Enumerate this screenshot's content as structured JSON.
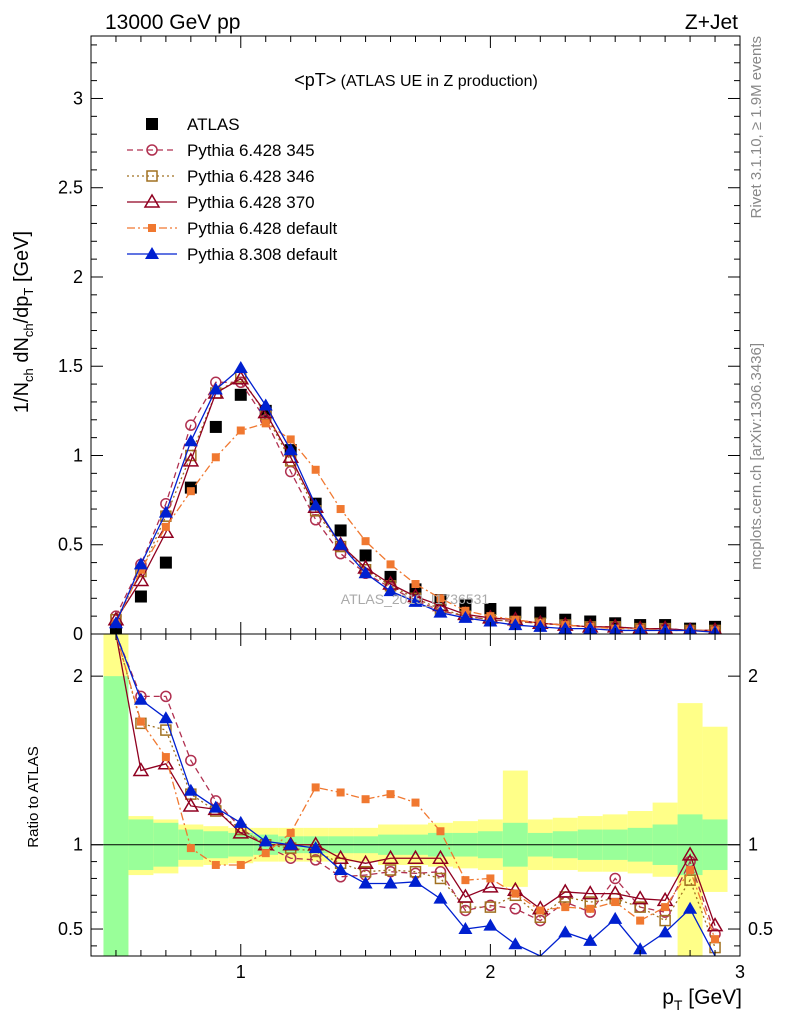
{
  "header": {
    "left": "13000 GeV pp",
    "right": "Z+Jet",
    "plot_title_main": "<pT>",
    "plot_title_sub": " (ATLAS UE in Z production)",
    "ylabel_main": "1/N",
    "ylabel_sub1": "ch",
    "ylabel_mid": " dN",
    "ylabel_sub2": "ch",
    "ylabel_tail": "/dp",
    "ylabel_sub3": "T",
    "ylabel_unit": " [GeV]",
    "xlabel_main": "p",
    "xlabel_sub": "T",
    "xlabel_unit": " [GeV]",
    "ratio_ylabel": "Ratio to ATLAS",
    "side_right_top": "Rivet 3.1.10, ≥ 1.9M events",
    "side_right_bottom": "mcplots.cern.ch [arXiv:1306.3436]",
    "watermark": "ATLAS_2019_I1736531"
  },
  "chart_data": [
    {
      "type": "scatter",
      "panel": "main",
      "x": [
        0.5,
        0.6,
        0.7,
        0.8,
        0.9,
        1.0,
        1.1,
        1.2,
        1.3,
        1.4,
        1.5,
        1.6,
        1.7,
        1.8,
        1.9,
        2.0,
        2.1,
        2.2,
        2.3,
        2.4,
        2.5,
        2.6,
        2.7,
        2.8,
        2.9
      ],
      "xlim": [
        0.4,
        3.0
      ],
      "ylim": [
        0,
        3.35
      ],
      "xticks": [
        1,
        2,
        3
      ],
      "yticks": [
        0,
        0.5,
        1,
        1.5,
        2,
        2.5,
        3
      ],
      "ytick_labels": [
        "0",
        "0.5",
        "1",
        "1.5",
        "2",
        "2.5",
        "3"
      ],
      "legend_placement": "top-left",
      "series": [
        {
          "name": "ATLAS",
          "color": "#000000",
          "marker": "square",
          "line": "none",
          "values": [
            0.03,
            0.21,
            0.4,
            0.82,
            1.16,
            1.34,
            1.25,
            1.03,
            0.73,
            0.58,
            0.44,
            0.32,
            0.25,
            0.19,
            0.16,
            0.14,
            0.12,
            0.12,
            0.08,
            0.07,
            0.06,
            0.05,
            0.05,
            0.03,
            0.04
          ]
        },
        {
          "name": "Pythia 6.428 345",
          "color": "#b03050",
          "marker": "circle-open",
          "line": "dashed",
          "values": [
            0.1,
            0.39,
            0.73,
            1.17,
            1.41,
            1.41,
            1.2,
            0.91,
            0.64,
            0.45,
            0.34,
            0.26,
            0.19,
            0.13,
            0.1,
            0.08,
            0.07,
            0.06,
            0.05,
            0.04,
            0.04,
            0.03,
            0.03,
            0.02,
            0.02
          ]
        },
        {
          "name": "Pythia 6.428 346",
          "color": "#a07020",
          "marker": "square-open",
          "line": "dotted",
          "values": [
            0.08,
            0.35,
            0.66,
            1.0,
            1.35,
            1.44,
            1.23,
            0.97,
            0.69,
            0.49,
            0.36,
            0.27,
            0.2,
            0.14,
            0.1,
            0.08,
            0.07,
            0.06,
            0.05,
            0.04,
            0.04,
            0.03,
            0.03,
            0.02,
            0.02
          ]
        },
        {
          "name": "Pythia 6.428 370",
          "color": "#900020",
          "marker": "triangle-open",
          "line": "solid",
          "values": [
            0.08,
            0.3,
            0.57,
            0.97,
            1.35,
            1.43,
            1.24,
            0.99,
            0.71,
            0.5,
            0.37,
            0.28,
            0.21,
            0.16,
            0.11,
            0.09,
            0.08,
            0.06,
            0.05,
            0.04,
            0.04,
            0.03,
            0.03,
            0.02,
            0.02
          ]
        },
        {
          "name": "Pythia 6.428 default",
          "color": "#f07830",
          "marker": "square-small",
          "line": "dashdot",
          "values": [
            0.06,
            0.36,
            0.6,
            0.8,
            0.99,
            1.14,
            1.18,
            1.09,
            0.92,
            0.7,
            0.52,
            0.39,
            0.28,
            0.2,
            0.13,
            0.1,
            0.08,
            0.06,
            0.05,
            0.04,
            0.03,
            0.03,
            0.02,
            0.02,
            0.02
          ]
        },
        {
          "name": "Pythia 8.308 default",
          "color": "#0020d0",
          "marker": "triangle",
          "line": "solid",
          "values": [
            0.06,
            0.39,
            0.68,
            1.08,
            1.37,
            1.49,
            1.28,
            1.03,
            0.72,
            0.5,
            0.34,
            0.24,
            0.18,
            0.12,
            0.09,
            0.07,
            0.05,
            0.04,
            0.03,
            0.03,
            0.02,
            0.02,
            0.02,
            0.02,
            0.01
          ]
        }
      ]
    },
    {
      "type": "line",
      "panel": "ratio",
      "x": [
        0.5,
        0.6,
        0.7,
        0.8,
        0.9,
        1.0,
        1.1,
        1.2,
        1.3,
        1.4,
        1.5,
        1.6,
        1.7,
        1.8,
        1.9,
        2.0,
        2.1,
        2.2,
        2.3,
        2.4,
        2.5,
        2.6,
        2.7,
        2.8,
        2.9
      ],
      "xlim": [
        0.4,
        3.0
      ],
      "ylim": [
        0.34,
        2.25
      ],
      "yticks": [
        0.5,
        1,
        2
      ],
      "ytick_labels": [
        "0.5",
        "1",
        "2"
      ],
      "xticks": [
        1,
        2,
        3
      ],
      "xtick_labels": [
        "1",
        "2",
        "3"
      ],
      "reference_line": 1,
      "band_stat": {
        "color": "#99ff99",
        "lo": [
          0.34,
          0.85,
          0.87,
          0.91,
          0.92,
          0.93,
          0.94,
          0.95,
          0.95,
          0.95,
          0.95,
          0.94,
          0.94,
          0.93,
          0.93,
          0.92,
          0.87,
          0.93,
          0.92,
          0.91,
          0.91,
          0.9,
          0.88,
          0.82,
          0.85
        ],
        "hi": [
          2.0,
          1.15,
          1.13,
          1.09,
          1.08,
          1.07,
          1.06,
          1.05,
          1.05,
          1.05,
          1.05,
          1.06,
          1.06,
          1.07,
          1.07,
          1.08,
          1.13,
          1.07,
          1.08,
          1.09,
          1.09,
          1.1,
          1.12,
          1.18,
          1.15
        ]
      },
      "band_total": {
        "color": "#ffff88",
        "lo": [
          0.34,
          0.82,
          0.83,
          0.87,
          0.88,
          0.89,
          0.9,
          0.9,
          0.9,
          0.9,
          0.9,
          0.88,
          0.88,
          0.87,
          0.86,
          0.85,
          0.75,
          0.85,
          0.85,
          0.84,
          0.84,
          0.83,
          0.81,
          0.34,
          0.72
        ],
        "hi": [
          2.25,
          1.17,
          1.15,
          1.12,
          1.11,
          1.1,
          1.1,
          1.1,
          1.1,
          1.1,
          1.1,
          1.12,
          1.12,
          1.13,
          1.14,
          1.15,
          1.44,
          1.15,
          1.16,
          1.17,
          1.18,
          1.2,
          1.25,
          1.84,
          1.7
        ]
      },
      "series": [
        {
          "name": "Pythia 6.428 345",
          "color": "#b03050",
          "marker": "circle-open",
          "line": "dashed",
          "values": [
            3.0,
            1.88,
            1.88,
            1.5,
            1.26,
            1.1,
            0.99,
            0.92,
            0.91,
            0.81,
            0.82,
            0.84,
            0.83,
            0.84,
            0.61,
            0.64,
            0.62,
            0.55,
            0.66,
            0.6,
            0.8,
            0.63,
            0.6,
            0.9,
            0.47
          ]
        },
        {
          "name": "Pythia 6.428 346",
          "color": "#a07020",
          "marker": "square-open",
          "line": "dotted",
          "values": [
            3.0,
            1.72,
            1.68,
            1.3,
            1.2,
            1.09,
            1.0,
            0.98,
            0.96,
            0.89,
            0.84,
            0.85,
            0.84,
            0.8,
            0.63,
            0.63,
            0.7,
            0.57,
            0.69,
            0.66,
            0.68,
            0.63,
            0.55,
            0.79,
            0.39
          ]
        },
        {
          "name": "Pythia 6.428 370",
          "color": "#900020",
          "marker": "triangle-open",
          "line": "solid",
          "values": [
            3.0,
            1.44,
            1.48,
            1.23,
            1.21,
            1.07,
            1.0,
            1.0,
            1.0,
            0.92,
            0.89,
            0.92,
            0.92,
            0.92,
            0.69,
            0.75,
            0.73,
            0.62,
            0.72,
            0.71,
            0.71,
            0.68,
            0.67,
            0.94,
            0.52
          ]
        },
        {
          "name": "Pythia 6.428 default",
          "color": "#f07830",
          "marker": "square-small",
          "line": "dashdot",
          "values": [
            2.6,
            1.73,
            1.52,
            0.98,
            0.88,
            0.88,
            0.95,
            1.07,
            1.34,
            1.31,
            1.27,
            1.3,
            1.25,
            1.08,
            0.79,
            0.8,
            0.71,
            0.61,
            0.63,
            0.62,
            0.66,
            0.55,
            0.63,
            0.85,
            0.44
          ]
        },
        {
          "name": "Pythia 8.308 default",
          "color": "#0020d0",
          "marker": "triangle",
          "line": "solid",
          "values": [
            3.0,
            1.86,
            1.75,
            1.32,
            1.22,
            1.13,
            1.02,
            1.0,
            0.98,
            0.85,
            0.77,
            0.77,
            0.78,
            0.68,
            0.5,
            0.52,
            0.41,
            0.32,
            0.48,
            0.43,
            0.56,
            0.38,
            0.48,
            0.62,
            0.28
          ]
        }
      ]
    }
  ]
}
